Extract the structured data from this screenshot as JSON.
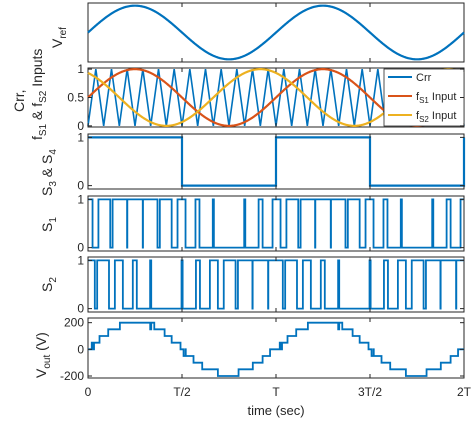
{
  "chart_data": [
    {
      "type": "line",
      "ylabel": "V_ref",
      "series": [
        {
          "values_description": "sin(2π t / T), 2 cycles",
          "color": "#0072BD"
        }
      ],
      "x": {
        "range_periods": [
          0,
          2
        ]
      },
      "ylim": [
        -1.1,
        1.1
      ],
      "yticks": []
    },
    {
      "type": "line",
      "ylabel": "Crr, f_S1 & f_S2 Inputs",
      "series": [
        {
          "name": "Crr",
          "color": "#0072BD",
          "shape": "triangle carrier 0–1, 24 periods per 2T"
        },
        {
          "name": "f_S1 Input",
          "color": "#D95319",
          "shape": "0.5 + 0.5·sin(2π t/T)"
        },
        {
          "name": "f_S2 Input",
          "color": "#EDB120",
          "shape": "0.5 + 0.5·sin(2π t/T + 2π/3)"
        }
      ],
      "ylim": [
        0,
        1
      ],
      "yticks": [
        0,
        0.5,
        1
      ],
      "legend_placement": "top-right"
    },
    {
      "type": "line",
      "ylabel": "S_3 & S_4",
      "series": [
        {
          "color": "#0072BD",
          "values": [
            {
              "from": 0,
              "to": 0.5,
              "level": 1
            },
            {
              "from": 0.5,
              "to": 1,
              "level": 0
            },
            {
              "from": 1,
              "to": 1.5,
              "level": 1
            },
            {
              "from": 1.5,
              "to": 2,
              "level": 0
            }
          ]
        }
      ],
      "ylim": [
        0,
        1
      ],
      "yticks": [
        0,
        1
      ]
    },
    {
      "type": "line",
      "ylabel": "S_1",
      "series": [
        {
          "color": "#0072BD",
          "values_description": "PWM: carrier < f_S1"
        }
      ],
      "ylim": [
        0,
        1
      ],
      "yticks": [
        0,
        1
      ]
    },
    {
      "type": "line",
      "ylabel": "S_2",
      "series": [
        {
          "color": "#0072BD",
          "values_description": "PWM: carrier < f_S2"
        }
      ],
      "ylim": [
        0,
        1
      ],
      "yticks": [
        0,
        1
      ]
    },
    {
      "type": "line",
      "ylabel": "V_out (V)",
      "xlabel": "time (sec)",
      "series": [
        {
          "color": "#0072BD",
          "values_description": "multilevel output, levels -200,-150,-100,-50,0,50,100,150,200"
        }
      ],
      "ylim": [
        -200,
        200
      ],
      "yticks": [
        -200,
        0,
        200
      ],
      "xticks": [
        "0",
        "T/2",
        "T",
        "3T/2",
        "2T"
      ]
    }
  ],
  "labels": {
    "vref_main": "V",
    "vref_sub": "ref",
    "p2_line1": "Crr,",
    "p2_f1": "f",
    "p2_s1": "S1",
    "p2_amp": " & f",
    "p2_s2": "S2",
    "p2_inputs": " Inputs",
    "p3_s": "S",
    "p3_3": "3",
    "p3_amp": " & S",
    "p3_4": "4",
    "p4_s": "S",
    "p4_1": "1",
    "p5_s": "S",
    "p5_2": "2",
    "p6_v": "V",
    "p6_sub": "out",
    "p6_unit": " (V)",
    "xlabel": "time (sec)",
    "legend": {
      "crr": "Crr",
      "fs1_f": "f",
      "fs1_sub": "S1",
      "fs1_rest": " Input",
      "fs2_f": "f",
      "fs2_sub": "S2",
      "fs2_rest": " Input"
    },
    "ticks": {
      "p2": [
        "0",
        "0.5",
        "1"
      ],
      "p3": [
        "0",
        "1"
      ],
      "p4": [
        "0",
        "1"
      ],
      "p5": [
        "0",
        "1"
      ],
      "p6": [
        "-200",
        "0",
        "200"
      ],
      "x": [
        "0",
        "T/2",
        "T",
        "3T/2",
        "2T"
      ]
    }
  }
}
